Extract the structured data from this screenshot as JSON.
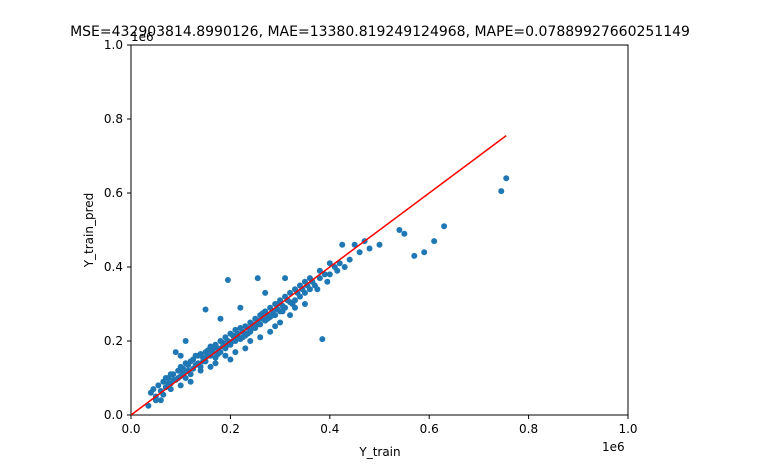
{
  "chart_data": {
    "type": "scatter",
    "title": "MSE=432903814.8990126, MAE=13380.819249124968, MAPE=0.07889927660251149",
    "xlabel": "Y_train",
    "ylabel": "Y_train_pred",
    "x_scale_label": "1e6",
    "y_scale_label": "1e6",
    "xlim": [
      0,
      1.0
    ],
    "ylim": [
      0,
      1.0
    ],
    "x_ticks": [
      0.0,
      0.2,
      0.4,
      0.6,
      0.8,
      1.0
    ],
    "y_ticks": [
      0.0,
      0.2,
      0.4,
      0.6,
      0.8,
      1.0
    ],
    "x_tick_labels": [
      "0.0",
      "0.2",
      "0.4",
      "0.6",
      "0.8",
      "1.0"
    ],
    "y_tick_labels": [
      "0.0",
      "0.2",
      "0.4",
      "0.6",
      "0.8",
      "1.0"
    ],
    "grid": false,
    "scatter_color": "#1f77b4",
    "line_color": "#ff0000",
    "reference_line": {
      "x": [
        0.0,
        0.755
      ],
      "y": [
        0.0,
        0.755
      ]
    },
    "points": [
      [
        0.035,
        0.025
      ],
      [
        0.04,
        0.06
      ],
      [
        0.045,
        0.07
      ],
      [
        0.05,
        0.05
      ],
      [
        0.055,
        0.08
      ],
      [
        0.06,
        0.065
      ],
      [
        0.065,
        0.09
      ],
      [
        0.07,
        0.075
      ],
      [
        0.075,
        0.1
      ],
      [
        0.08,
        0.085
      ],
      [
        0.085,
        0.11
      ],
      [
        0.09,
        0.095
      ],
      [
        0.095,
        0.12
      ],
      [
        0.1,
        0.105
      ],
      [
        0.1,
        0.13
      ],
      [
        0.105,
        0.115
      ],
      [
        0.11,
        0.14
      ],
      [
        0.115,
        0.12
      ],
      [
        0.12,
        0.145
      ],
      [
        0.12,
        0.11
      ],
      [
        0.125,
        0.15
      ],
      [
        0.13,
        0.135
      ],
      [
        0.13,
        0.16
      ],
      [
        0.135,
        0.14
      ],
      [
        0.14,
        0.165
      ],
      [
        0.14,
        0.13
      ],
      [
        0.145,
        0.155
      ],
      [
        0.15,
        0.17
      ],
      [
        0.15,
        0.145
      ],
      [
        0.155,
        0.175
      ],
      [
        0.16,
        0.16
      ],
      [
        0.16,
        0.185
      ],
      [
        0.165,
        0.17
      ],
      [
        0.17,
        0.19
      ],
      [
        0.17,
        0.155
      ],
      [
        0.175,
        0.18
      ],
      [
        0.18,
        0.2
      ],
      [
        0.18,
        0.17
      ],
      [
        0.185,
        0.195
      ],
      [
        0.19,
        0.21
      ],
      [
        0.19,
        0.18
      ],
      [
        0.195,
        0.2
      ],
      [
        0.2,
        0.22
      ],
      [
        0.2,
        0.19
      ],
      [
        0.205,
        0.215
      ],
      [
        0.21,
        0.2
      ],
      [
        0.21,
        0.23
      ],
      [
        0.215,
        0.21
      ],
      [
        0.22,
        0.235
      ],
      [
        0.22,
        0.205
      ],
      [
        0.225,
        0.225
      ],
      [
        0.23,
        0.24
      ],
      [
        0.23,
        0.215
      ],
      [
        0.235,
        0.235
      ],
      [
        0.24,
        0.25
      ],
      [
        0.24,
        0.225
      ],
      [
        0.245,
        0.245
      ],
      [
        0.25,
        0.26
      ],
      [
        0.25,
        0.235
      ],
      [
        0.255,
        0.255
      ],
      [
        0.26,
        0.27
      ],
      [
        0.26,
        0.245
      ],
      [
        0.265,
        0.26
      ],
      [
        0.27,
        0.28
      ],
      [
        0.27,
        0.255
      ],
      [
        0.275,
        0.27
      ],
      [
        0.28,
        0.29
      ],
      [
        0.28,
        0.265
      ],
      [
        0.285,
        0.28
      ],
      [
        0.29,
        0.3
      ],
      [
        0.29,
        0.27
      ],
      [
        0.295,
        0.285
      ],
      [
        0.3,
        0.31
      ],
      [
        0.3,
        0.28
      ],
      [
        0.305,
        0.295
      ],
      [
        0.31,
        0.32
      ],
      [
        0.31,
        0.29
      ],
      [
        0.32,
        0.305
      ],
      [
        0.32,
        0.33
      ],
      [
        0.33,
        0.31
      ],
      [
        0.33,
        0.34
      ],
      [
        0.34,
        0.32
      ],
      [
        0.34,
        0.35
      ],
      [
        0.35,
        0.33
      ],
      [
        0.35,
        0.36
      ],
      [
        0.36,
        0.34
      ],
      [
        0.36,
        0.37
      ],
      [
        0.37,
        0.35
      ],
      [
        0.38,
        0.37
      ],
      [
        0.38,
        0.39
      ],
      [
        0.39,
        0.38
      ],
      [
        0.4,
        0.38
      ],
      [
        0.4,
        0.41
      ],
      [
        0.41,
        0.4
      ],
      [
        0.42,
        0.41
      ],
      [
        0.44,
        0.42
      ],
      [
        0.45,
        0.46
      ],
      [
        0.46,
        0.44
      ],
      [
        0.47,
        0.47
      ],
      [
        0.48,
        0.45
      ],
      [
        0.5,
        0.46
      ],
      [
        0.54,
        0.5
      ],
      [
        0.55,
        0.49
      ],
      [
        0.57,
        0.43
      ],
      [
        0.59,
        0.44
      ],
      [
        0.61,
        0.47
      ],
      [
        0.63,
        0.51
      ],
      [
        0.745,
        0.605
      ],
      [
        0.755,
        0.64
      ],
      [
        0.195,
        0.365
      ],
      [
        0.255,
        0.37
      ],
      [
        0.15,
        0.285
      ],
      [
        0.385,
        0.205
      ],
      [
        0.425,
        0.46
      ],
      [
        0.31,
        0.37
      ],
      [
        0.27,
        0.33
      ],
      [
        0.2,
        0.15
      ],
      [
        0.18,
        0.26
      ],
      [
        0.22,
        0.29
      ],
      [
        0.11,
        0.2
      ],
      [
        0.09,
        0.17
      ],
      [
        0.1,
        0.16
      ],
      [
        0.06,
        0.04
      ],
      [
        0.065,
        0.055
      ],
      [
        0.07,
        0.1
      ],
      [
        0.075,
        0.085
      ],
      [
        0.08,
        0.11
      ],
      [
        0.085,
        0.095
      ],
      [
        0.095,
        0.1
      ],
      [
        0.105,
        0.125
      ],
      [
        0.11,
        0.1
      ],
      [
        0.115,
        0.135
      ],
      [
        0.125,
        0.125
      ],
      [
        0.135,
        0.16
      ],
      [
        0.145,
        0.145
      ],
      [
        0.155,
        0.16
      ],
      [
        0.165,
        0.18
      ],
      [
        0.175,
        0.165
      ],
      [
        0.185,
        0.185
      ],
      [
        0.195,
        0.19
      ],
      [
        0.205,
        0.2
      ],
      [
        0.215,
        0.22
      ],
      [
        0.225,
        0.21
      ],
      [
        0.235,
        0.22
      ],
      [
        0.245,
        0.235
      ],
      [
        0.255,
        0.245
      ],
      [
        0.265,
        0.275
      ],
      [
        0.275,
        0.26
      ],
      [
        0.285,
        0.27
      ],
      [
        0.295,
        0.3
      ],
      [
        0.305,
        0.28
      ],
      [
        0.315,
        0.31
      ],
      [
        0.325,
        0.3
      ],
      [
        0.335,
        0.33
      ],
      [
        0.345,
        0.34
      ],
      [
        0.355,
        0.35
      ],
      [
        0.365,
        0.36
      ],
      [
        0.375,
        0.34
      ],
      [
        0.395,
        0.36
      ],
      [
        0.415,
        0.39
      ],
      [
        0.43,
        0.4
      ],
      [
        0.35,
        0.3
      ],
      [
        0.33,
        0.29
      ],
      [
        0.32,
        0.27
      ],
      [
        0.3,
        0.25
      ],
      [
        0.29,
        0.24
      ],
      [
        0.28,
        0.225
      ],
      [
        0.26,
        0.21
      ],
      [
        0.24,
        0.2
      ],
      [
        0.23,
        0.18
      ],
      [
        0.21,
        0.17
      ],
      [
        0.19,
        0.16
      ],
      [
        0.17,
        0.14
      ],
      [
        0.16,
        0.13
      ],
      [
        0.14,
        0.12
      ],
      [
        0.12,
        0.09
      ],
      [
        0.1,
        0.08
      ],
      [
        0.08,
        0.07
      ],
      [
        0.05,
        0.04
      ]
    ]
  }
}
